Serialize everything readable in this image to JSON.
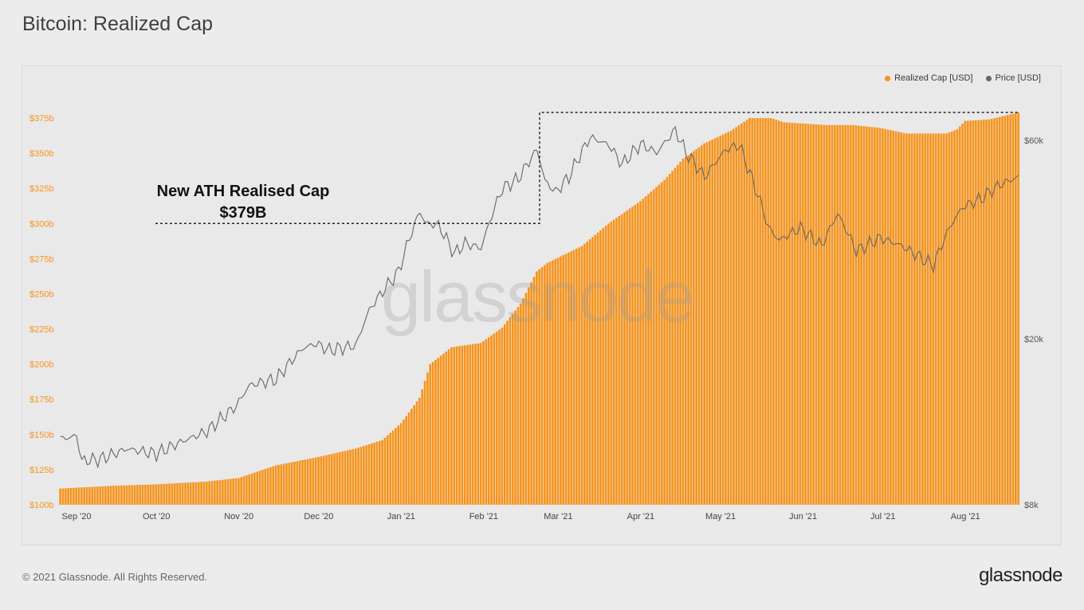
{
  "page": {
    "title": "Bitcoin: Realized Cap",
    "copyright": "© 2021 Glassnode. All Rights Reserved.",
    "logo": "glassnode",
    "watermark": "glassnode"
  },
  "legend": {
    "items": [
      {
        "label": "Realized Cap [USD]",
        "color": "#f7931a"
      },
      {
        "label": "Price [USD]",
        "color": "#666666"
      }
    ]
  },
  "annotation": {
    "line1": "New ATH Realised Cap",
    "line2": "$379B"
  },
  "chart_data": {
    "type": "bar",
    "title": "Bitcoin: Realized Cap",
    "x_range": [
      "2020-08-26",
      "2021-08-21"
    ],
    "x_ticks": [
      {
        "date": "2020-09-01",
        "label": "Sep '20"
      },
      {
        "date": "2020-10-01",
        "label": "Oct '20"
      },
      {
        "date": "2020-11-01",
        "label": "Nov '20"
      },
      {
        "date": "2020-12-01",
        "label": "Dec '20"
      },
      {
        "date": "2021-01-01",
        "label": "Jan '21"
      },
      {
        "date": "2021-02-01",
        "label": "Feb '21"
      },
      {
        "date": "2021-03-01",
        "label": "Mar '21"
      },
      {
        "date": "2021-04-01",
        "label": "Apr '21"
      },
      {
        "date": "2021-05-01",
        "label": "May '21"
      },
      {
        "date": "2021-06-01",
        "label": "Jun '21"
      },
      {
        "date": "2021-07-01",
        "label": "Jul '21"
      },
      {
        "date": "2021-08-01",
        "label": "Aug '21"
      }
    ],
    "y_left": {
      "unit": "billion USD",
      "range": [
        100,
        379
      ],
      "ticks": [
        100,
        125,
        150,
        175,
        200,
        225,
        250,
        275,
        300,
        325,
        350,
        375
      ],
      "tick_labels": [
        "$100b",
        "$125b",
        "$150b",
        "$175b",
        "$200b",
        "$225b",
        "$250b",
        "$275b",
        "$300b",
        "$325b",
        "$350b",
        "$375b"
      ]
    },
    "y_right": {
      "scale": "log",
      "range": [
        8000,
        70000
      ],
      "ticks": [
        8000,
        20000,
        60000
      ],
      "tick_labels": [
        "$8k",
        "$20k",
        "$60k"
      ]
    },
    "series": [
      {
        "name": "Realized Cap [USD]",
        "type": "bar",
        "axis": "left",
        "color": "#f7931a",
        "points": [
          [
            "2020-08-26",
            111.5
          ],
          [
            "2020-09-15",
            113.5
          ],
          [
            "2020-10-01",
            114.5
          ],
          [
            "2020-10-20",
            116.5
          ],
          [
            "2020-11-01",
            119
          ],
          [
            "2020-11-15",
            128
          ],
          [
            "2020-12-01",
            134
          ],
          [
            "2020-12-15",
            140
          ],
          [
            "2020-12-25",
            146
          ],
          [
            "2021-01-01",
            158
          ],
          [
            "2021-01-08",
            176
          ],
          [
            "2021-01-12",
            200
          ],
          [
            "2021-01-20",
            212
          ],
          [
            "2021-01-31",
            215
          ],
          [
            "2021-02-08",
            226
          ],
          [
            "2021-02-15",
            243
          ],
          [
            "2021-02-21",
            266
          ],
          [
            "2021-02-25",
            272
          ],
          [
            "2021-03-10",
            284
          ],
          [
            "2021-03-20",
            300
          ],
          [
            "2021-04-01",
            316
          ],
          [
            "2021-04-10",
            331
          ],
          [
            "2021-04-17",
            346
          ],
          [
            "2021-04-25",
            357
          ],
          [
            "2021-05-05",
            366
          ],
          [
            "2021-05-12",
            375
          ],
          [
            "2021-05-20",
            375
          ],
          [
            "2021-05-25",
            372
          ],
          [
            "2021-06-10",
            370
          ],
          [
            "2021-06-20",
            370
          ],
          [
            "2021-06-30",
            368
          ],
          [
            "2021-07-10",
            364
          ],
          [
            "2021-07-25",
            364
          ],
          [
            "2021-07-29",
            367
          ],
          [
            "2021-08-01",
            373
          ],
          [
            "2021-08-10",
            374
          ],
          [
            "2021-08-21",
            379
          ]
        ]
      },
      {
        "name": "Price [USD]",
        "type": "line",
        "axis": "right",
        "color": "#666666",
        "points": [
          [
            "2020-08-26",
            11500
          ],
          [
            "2020-09-01",
            11700
          ],
          [
            "2020-09-03",
            10200
          ],
          [
            "2020-09-10",
            10300
          ],
          [
            "2020-09-20",
            10900
          ],
          [
            "2020-10-01",
            10600
          ],
          [
            "2020-10-10",
            11300
          ],
          [
            "2020-10-20",
            12000
          ],
          [
            "2020-10-31",
            13800
          ],
          [
            "2020-11-05",
            15500
          ],
          [
            "2020-11-15",
            16000
          ],
          [
            "2020-11-25",
            19000
          ],
          [
            "2020-11-30",
            19500
          ],
          [
            "2020-12-05",
            18800
          ],
          [
            "2020-12-15",
            19300
          ],
          [
            "2020-12-20",
            23500
          ],
          [
            "2020-12-31",
            29000
          ],
          [
            "2021-01-08",
            40500
          ],
          [
            "2021-01-10",
            38000
          ],
          [
            "2021-01-15",
            37500
          ],
          [
            "2021-01-21",
            32000
          ],
          [
            "2021-01-25",
            34000
          ],
          [
            "2021-01-31",
            33000
          ],
          [
            "2021-02-08",
            46000
          ],
          [
            "2021-02-14",
            48500
          ],
          [
            "2021-02-21",
            57000
          ],
          [
            "2021-02-24",
            48000
          ],
          [
            "2021-02-28",
            45000
          ],
          [
            "2021-03-05",
            49000
          ],
          [
            "2021-03-13",
            61000
          ],
          [
            "2021-03-20",
            58500
          ],
          [
            "2021-03-25",
            52500
          ],
          [
            "2021-04-01",
            58800
          ],
          [
            "2021-04-07",
            56000
          ],
          [
            "2021-04-14",
            63500
          ],
          [
            "2021-04-18",
            56000
          ],
          [
            "2021-04-25",
            49000
          ],
          [
            "2021-05-03",
            57000
          ],
          [
            "2021-05-08",
            58500
          ],
          [
            "2021-05-12",
            50000
          ],
          [
            "2021-05-19",
            37000
          ],
          [
            "2021-05-23",
            34500
          ],
          [
            "2021-05-31",
            37000
          ],
          [
            "2021-06-08",
            33500
          ],
          [
            "2021-06-14",
            40000
          ],
          [
            "2021-06-21",
            32500
          ],
          [
            "2021-06-30",
            35000
          ],
          [
            "2021-07-08",
            33500
          ],
          [
            "2021-07-20",
            30000
          ],
          [
            "2021-07-26",
            37000
          ],
          [
            "2021-07-31",
            41500
          ],
          [
            "2021-08-07",
            43500
          ],
          [
            "2021-08-14",
            47000
          ],
          [
            "2021-08-21",
            49000
          ]
        ]
      }
    ],
    "ath_value": 379,
    "ath_date": "2021-08-21",
    "legend_position": "top-right",
    "grid": true
  }
}
